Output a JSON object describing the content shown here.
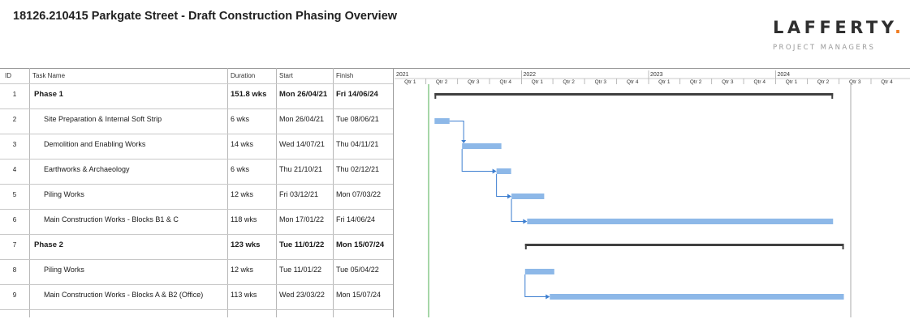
{
  "header": {
    "title": "18126.210415 Parkgate Street - Draft Construction Phasing Overview",
    "logo_text": "LAFFERTY",
    "logo_dot": ".",
    "logo_subtitle": "PROJECT MANAGERS",
    "accent_color": "#f07c21"
  },
  "columns": {
    "id": "ID",
    "task_name": "Task Name",
    "duration": "Duration",
    "start": "Start",
    "finish": "Finish"
  },
  "timeline": {
    "years": [
      "2021",
      "2022",
      "2023",
      "2024"
    ],
    "quarters": [
      "Qtr 1",
      "Qtr 2",
      "Qtr 3",
      "Qtr 4",
      "Qtr 1",
      "Qtr 2",
      "Qtr 3",
      "Qtr 4",
      "Qtr 1",
      "Qtr 2",
      "Qtr 3",
      "Qtr 4",
      "Qtr 1",
      "Qtr 2",
      "Qtr 3",
      "Qtr 4"
    ]
  },
  "chart_data": {
    "type": "gantt",
    "title": "18126.210415 Parkgate Street - Draft Construction Phasing Overview",
    "x_axis": "time",
    "x_range": [
      "2021-01-01",
      "2024-12-31"
    ],
    "bar_color": "#8db8e8",
    "summary_color": "#404040",
    "link_color": "#3c7ed0",
    "today_line_color": "#4caf50",
    "tasks": [
      {
        "id": "1",
        "name": "Phase 1",
        "duration": "151.8 wks",
        "start": "Mon 26/04/21",
        "finish": "Fri 14/06/24",
        "start_date": "2021-04-26",
        "end_date": "2024-06-14",
        "summary": true
      },
      {
        "id": "2",
        "name": "Site Preparation & Internal Soft Strip",
        "duration": "6 wks",
        "start": "Mon 26/04/21",
        "finish": "Tue 08/06/21",
        "start_date": "2021-04-26",
        "end_date": "2021-06-08",
        "summary": false
      },
      {
        "id": "3",
        "name": "Demolition and Enabling Works",
        "duration": "14 wks",
        "start": "Wed 14/07/21",
        "finish": "Thu 04/11/21",
        "start_date": "2021-07-14",
        "end_date": "2021-11-04",
        "summary": false
      },
      {
        "id": "4",
        "name": "Earthworks & Archaeology",
        "duration": "6 wks",
        "start": "Thu 21/10/21",
        "finish": "Thu 02/12/21",
        "start_date": "2021-10-21",
        "end_date": "2021-12-02",
        "summary": false
      },
      {
        "id": "5",
        "name": "Piling Works",
        "duration": "12 wks",
        "start": "Fri 03/12/21",
        "finish": "Mon 07/03/22",
        "start_date": "2021-12-03",
        "end_date": "2022-03-07",
        "summary": false
      },
      {
        "id": "6",
        "name": "Main Construction Works - Blocks B1 & C",
        "duration": "118 wks",
        "start": "Mon 17/01/22",
        "finish": "Fri 14/06/24",
        "start_date": "2022-01-17",
        "end_date": "2024-06-14",
        "summary": false
      },
      {
        "id": "7",
        "name": "Phase 2",
        "duration": "123 wks",
        "start": "Tue 11/01/22",
        "finish": "Mon 15/07/24",
        "start_date": "2022-01-11",
        "end_date": "2024-07-15",
        "summary": true
      },
      {
        "id": "8",
        "name": "Piling Works",
        "duration": "12 wks",
        "start": "Tue 11/01/22",
        "finish": "Tue 05/04/22",
        "start_date": "2022-01-11",
        "end_date": "2022-04-05",
        "summary": false
      },
      {
        "id": "9",
        "name": "Main Construction Works - Blocks A & B2 (Office)",
        "duration": "113 wks",
        "start": "Wed 23/03/22",
        "finish": "Mon 15/07/24",
        "start_date": "2022-03-23",
        "end_date": "2024-07-15",
        "summary": false
      }
    ],
    "links": [
      {
        "from": "2",
        "to": "3"
      },
      {
        "from": "3",
        "to": "4"
      },
      {
        "from": "4",
        "to": "5"
      },
      {
        "from": "5",
        "to": "6"
      },
      {
        "from": "8",
        "to": "9"
      }
    ]
  }
}
